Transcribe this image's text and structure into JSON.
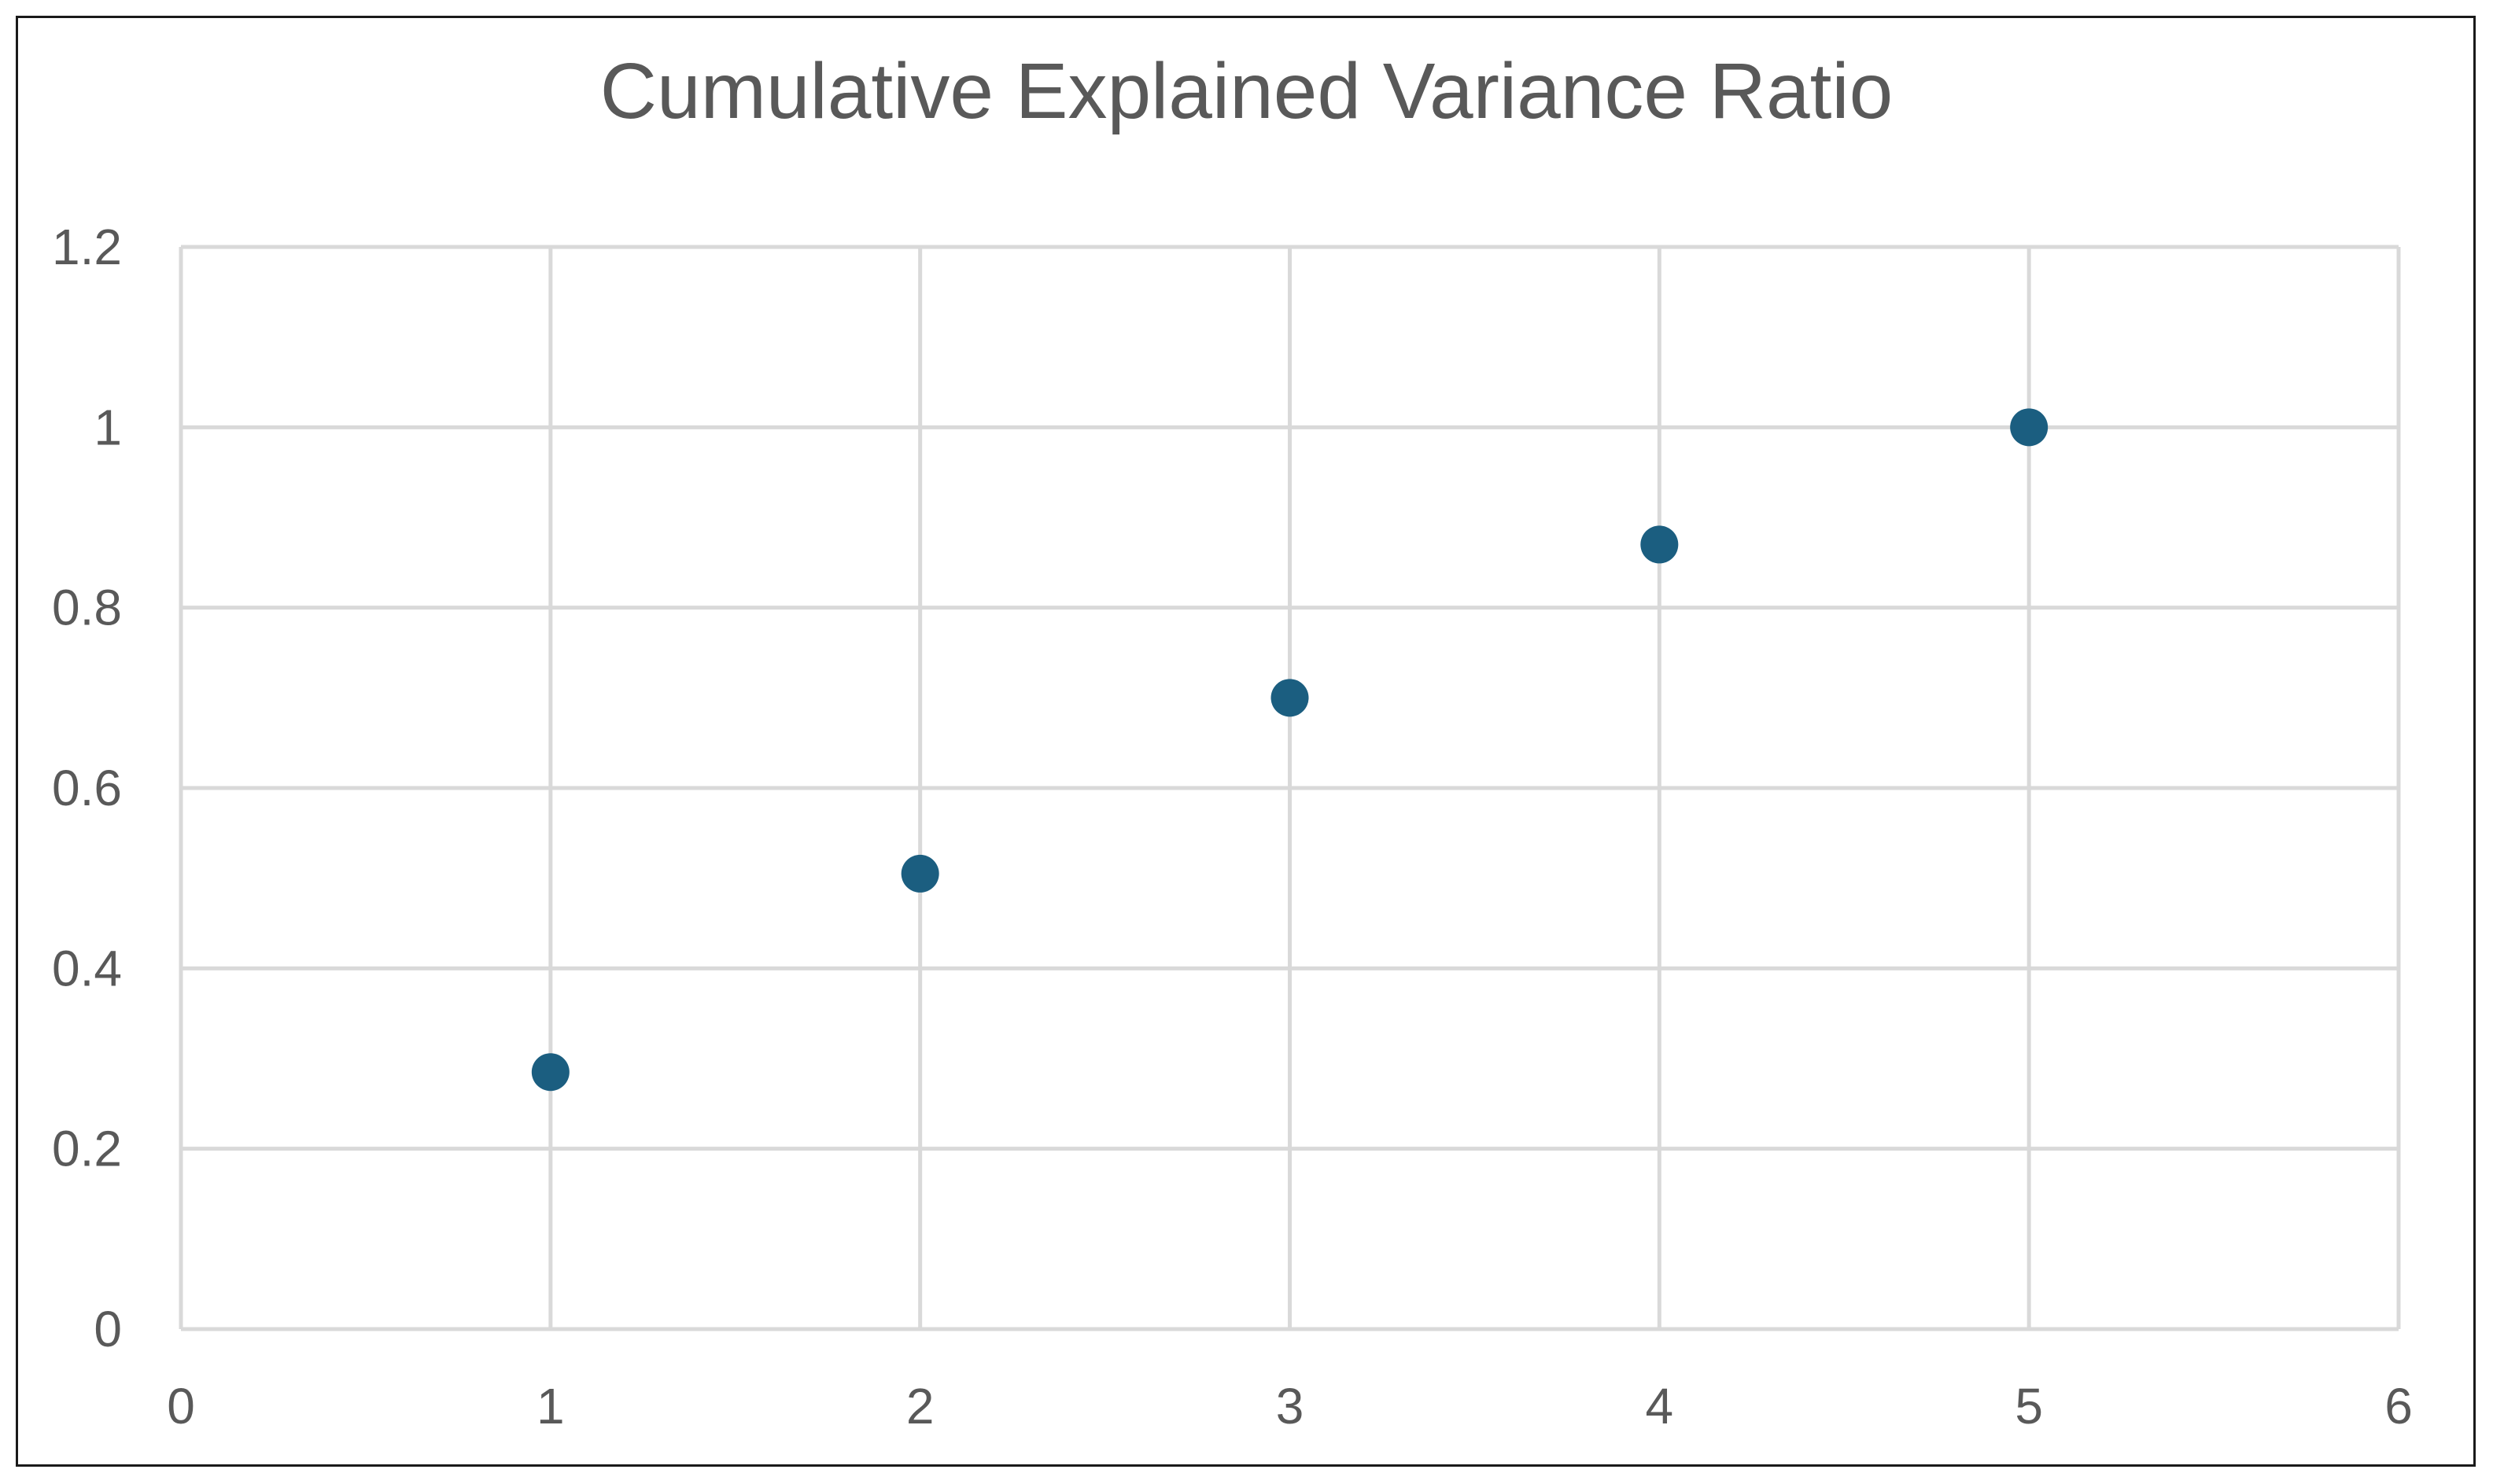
{
  "chart_data": {
    "type": "scatter",
    "title": "Cumulative Explained Variance Ratio",
    "xlabel": "",
    "ylabel": "",
    "xlim": [
      0,
      6
    ],
    "ylim": [
      0,
      1.2
    ],
    "x_ticks": [
      "0",
      "1",
      "2",
      "3",
      "4",
      "5",
      "6"
    ],
    "y_ticks": [
      "0",
      "0.2",
      "0.4",
      "0.6",
      "0.8",
      "1",
      "1.2"
    ],
    "grid": true,
    "legend": "none",
    "series": [
      {
        "color": "#1b5e80",
        "points": [
          {
            "x": 1,
            "y": 0.285
          },
          {
            "x": 2,
            "y": 0.505
          },
          {
            "x": 3,
            "y": 0.7
          },
          {
            "x": 4,
            "y": 0.87
          },
          {
            "x": 5,
            "y": 1.0
          }
        ]
      }
    ]
  }
}
